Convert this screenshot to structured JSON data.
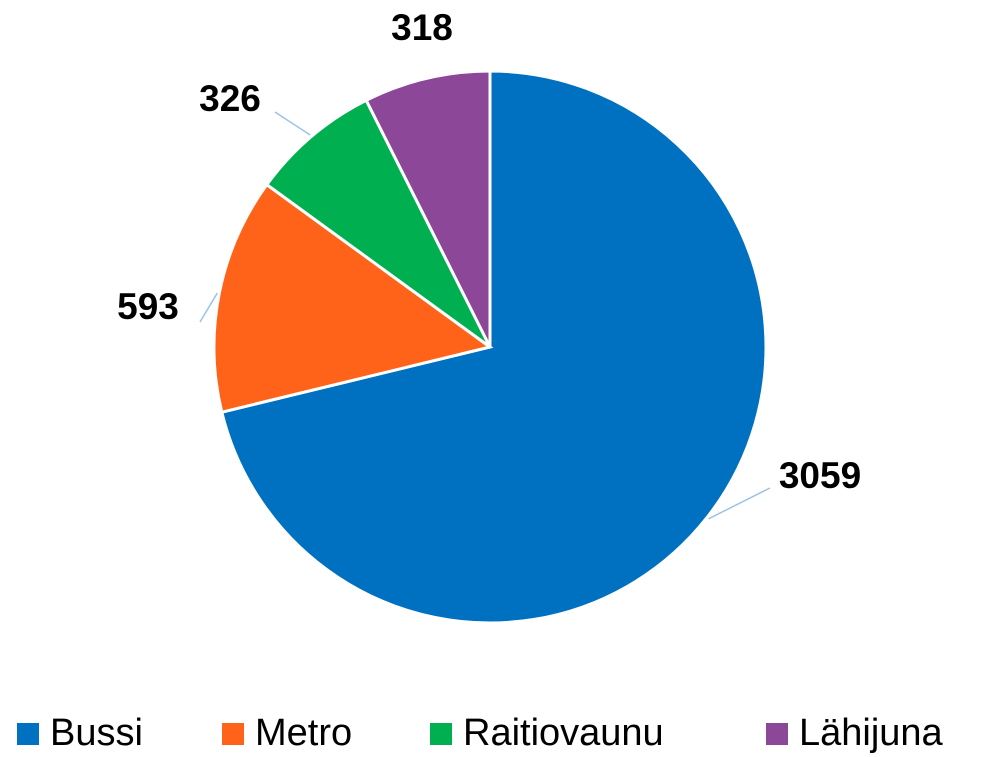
{
  "chart_data": {
    "type": "pie",
    "categories": [
      "Bussi",
      "Metro",
      "Raitiovaunu",
      "Lähijuna"
    ],
    "values": [
      3059,
      593,
      326,
      318
    ],
    "colors": [
      "#0070c0",
      "#ff6319",
      "#00b050",
      "#8c4799"
    ],
    "legend": "bottom"
  }
}
